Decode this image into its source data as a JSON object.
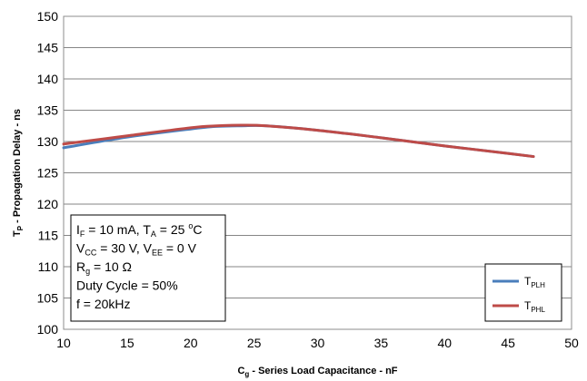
{
  "chart_data": {
    "type": "line",
    "xlabel": {
      "main": "C",
      "sub": "g",
      "rest": " - Series Load Capacitance - nF"
    },
    "ylabel": {
      "main": "T",
      "sub": "P",
      "rest": " - Propagation Delay - ns"
    },
    "xlim": [
      10,
      50
    ],
    "ylim": [
      100,
      150
    ],
    "xticks": [
      10,
      15,
      20,
      25,
      30,
      35,
      40,
      45,
      50
    ],
    "yticks": [
      100,
      105,
      110,
      115,
      120,
      125,
      130,
      135,
      140,
      145,
      150
    ],
    "grid": {
      "horizontal": true,
      "vertical": false
    },
    "legend_position": "bottom-right",
    "series": [
      {
        "name": {
          "main": "T",
          "sub": "PLH"
        },
        "color": "#4a7ebb",
        "x": [
          10,
          15,
          20,
          22,
          24,
          26,
          30,
          35,
          40,
          45,
          47
        ],
        "y": [
          129.0,
          130.7,
          132.0,
          132.4,
          132.5,
          132.5,
          131.8,
          130.6,
          129.3,
          128.1,
          127.6
        ]
      },
      {
        "name": {
          "main": "T",
          "sub": "PHL"
        },
        "color": "#be4b48",
        "x": [
          10,
          15,
          20,
          22,
          24,
          26,
          30,
          35,
          40,
          45,
          47
        ],
        "y": [
          129.6,
          130.9,
          132.2,
          132.5,
          132.6,
          132.5,
          131.8,
          130.6,
          129.3,
          128.1,
          127.6
        ]
      }
    ],
    "annotation": [
      [
        {
          "t": "I"
        },
        {
          "t": "F",
          "sub": true
        },
        {
          "t": " = 10 mA, T"
        },
        {
          "t": "A",
          "sub": true
        },
        {
          "t": " = 25 "
        },
        {
          "t": "o",
          "sup": true
        },
        {
          "t": "C"
        }
      ],
      [
        {
          "t": "V"
        },
        {
          "t": "CC",
          "sub": true
        },
        {
          "t": " = 30 V, V"
        },
        {
          "t": "EE",
          "sub": true
        },
        {
          "t": " = 0 V"
        }
      ],
      [
        {
          "t": "R"
        },
        {
          "t": "g",
          "sub": true
        },
        {
          "t": " = 10 Ω"
        }
      ],
      [
        {
          "t": "Duty Cycle = 50%"
        }
      ],
      [
        {
          "t": "f = 20kHz"
        }
      ]
    ]
  }
}
